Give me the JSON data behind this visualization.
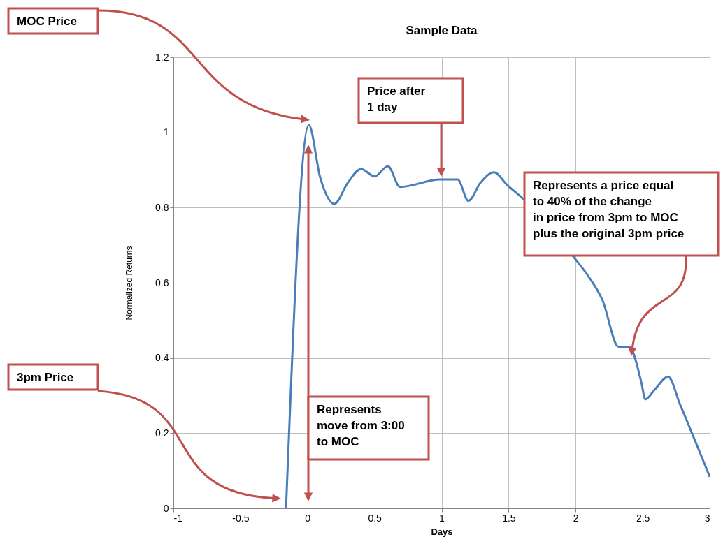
{
  "chart_data": {
    "type": "line",
    "title": "Sample Data",
    "xlabel": "Days",
    "ylabel": "Normalized Returns",
    "x": [
      -0.16,
      0.01,
      0.095,
      0.2,
      0.3,
      0.4,
      0.5,
      0.6,
      0.69,
      0.99,
      1.12,
      1.2,
      1.29,
      1.39,
      1.49,
      1.61,
      2.0,
      2.09,
      2.2,
      2.32,
      2.4,
      2.49,
      2.52,
      2.59,
      2.69,
      2.78,
      3.0
    ],
    "values": [
      0,
      1.02,
      0.88,
      0.81,
      0.866,
      0.903,
      0.883,
      0.91,
      0.855,
      0.875,
      0.875,
      0.818,
      0.866,
      0.894,
      0.86,
      0.823,
      0.662,
      0.62,
      0.554,
      0.43,
      0.43,
      0.335,
      0.29,
      0.316,
      0.35,
      0.275,
      0.084
    ],
    "color": "#4a7ebb",
    "xlim": [
      -1,
      3
    ],
    "ylim": [
      0,
      1.2
    ],
    "xticks": [
      -1,
      -0.5,
      0,
      0.5,
      1,
      1.5,
      2,
      2.5,
      3
    ],
    "yticks": [
      0,
      0.2,
      0.4,
      0.6,
      0.8,
      1,
      1.2
    ],
    "grid": true,
    "marker": "none",
    "line_style": "solid",
    "annotations": [
      "MOC Price",
      "3pm Price",
      "Price after 1 day",
      "Represents a price equal to 40% of the change in price from 3pm to MOC plus the original 3pm price",
      "Represents move from 3:00 to MOC"
    ]
  }
}
